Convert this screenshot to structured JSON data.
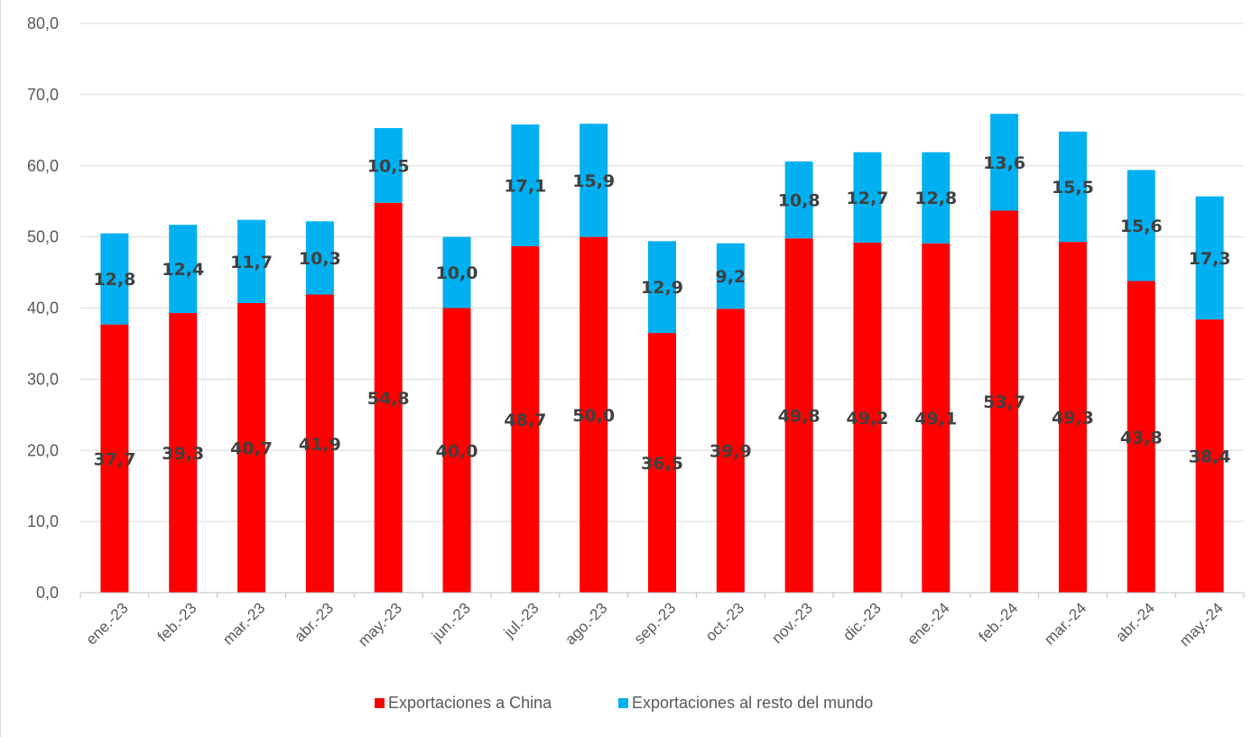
{
  "chart_data": {
    "type": "bar",
    "stacked": true,
    "categories": [
      "ene.-23",
      "feb.-23",
      "mar.-23",
      "abr.-23",
      "may.-23",
      "jun.-23",
      "jul.-23",
      "ago.-23",
      "sep.-23",
      "oct.-23",
      "nov.-23",
      "dic.-23",
      "ene.-24",
      "feb.-24",
      "mar.-24",
      "abr.-24",
      "may.-24"
    ],
    "series": [
      {
        "name": "Exportaciones a China",
        "color": "#ff0000",
        "values": [
          37.7,
          39.3,
          40.7,
          41.9,
          54.8,
          40.0,
          48.7,
          50.0,
          36.5,
          39.9,
          49.8,
          49.2,
          49.1,
          53.7,
          49.3,
          43.8,
          38.4
        ],
        "labels": [
          "37,7",
          "39,3",
          "40,7",
          "41,9",
          "54,8",
          "40,0",
          "48,7",
          "50,0",
          "36,5",
          "39,9",
          "49,8",
          "49,2",
          "49,1",
          "53,7",
          "49,3",
          "43,8",
          "38,4"
        ]
      },
      {
        "name": "Exportaciones al resto del mundo",
        "color": "#00b0f0",
        "values": [
          12.8,
          12.4,
          11.7,
          10.3,
          10.5,
          10.0,
          17.1,
          15.9,
          12.9,
          9.2,
          10.8,
          12.7,
          12.8,
          13.6,
          15.5,
          15.6,
          17.3
        ],
        "labels": [
          "12,8",
          "12,4",
          "11,7",
          "10,3",
          "10,5",
          "10,0",
          "17,1",
          "15,9",
          "12,9",
          "9,2",
          "10,8",
          "12,7",
          "12,8",
          "13,6",
          "15,5",
          "15,6",
          "17,3"
        ]
      }
    ],
    "ylim": [
      0,
      80
    ],
    "yticks": [
      "0,0",
      "10,0",
      "20,0",
      "30,0",
      "40,0",
      "50,0",
      "60,0",
      "70,0",
      "80,0"
    ],
    "grid": true,
    "legend": "bottom",
    "title": "",
    "xlabel": "",
    "ylabel": ""
  }
}
